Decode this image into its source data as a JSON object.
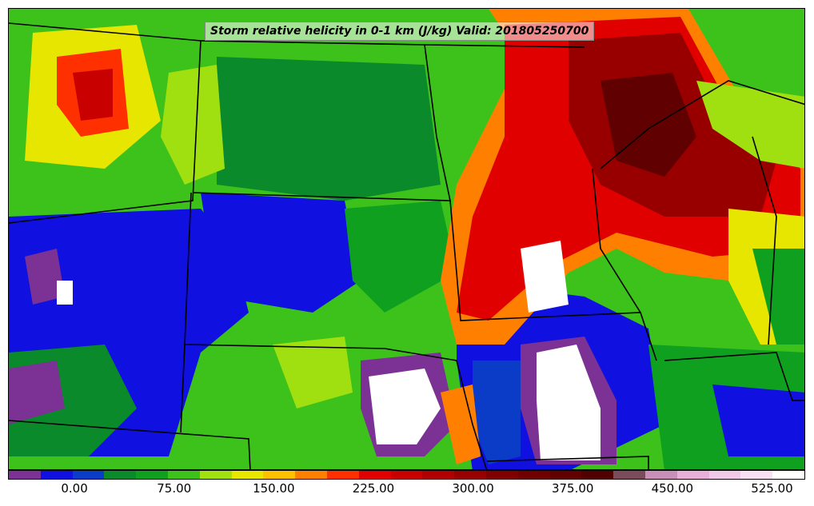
{
  "title": "Storm relative helicity in 0-1 km (J/kg) Valid: 201805250700",
  "colorbar": {
    "colors": [
      "#7b3294",
      "#1010e0",
      "#0a3cc8",
      "#0a8a2a",
      "#10a020",
      "#3cc21a",
      "#a0e010",
      "#e6e600",
      "#ffc000",
      "#ff8000",
      "#ff3000",
      "#e00000",
      "#c80000",
      "#b00000",
      "#980000",
      "#800000",
      "#700000",
      "#600000",
      "#500000",
      "#7a4b5a",
      "#c890b8",
      "#e8b0d8",
      "#f0c8e8",
      "#f8e0f4",
      "#ffffff"
    ],
    "ticks": [
      "0.00",
      "75.00",
      "150.00",
      "225.00",
      "300.00",
      "375.00",
      "450.00",
      "525.00"
    ]
  }
}
